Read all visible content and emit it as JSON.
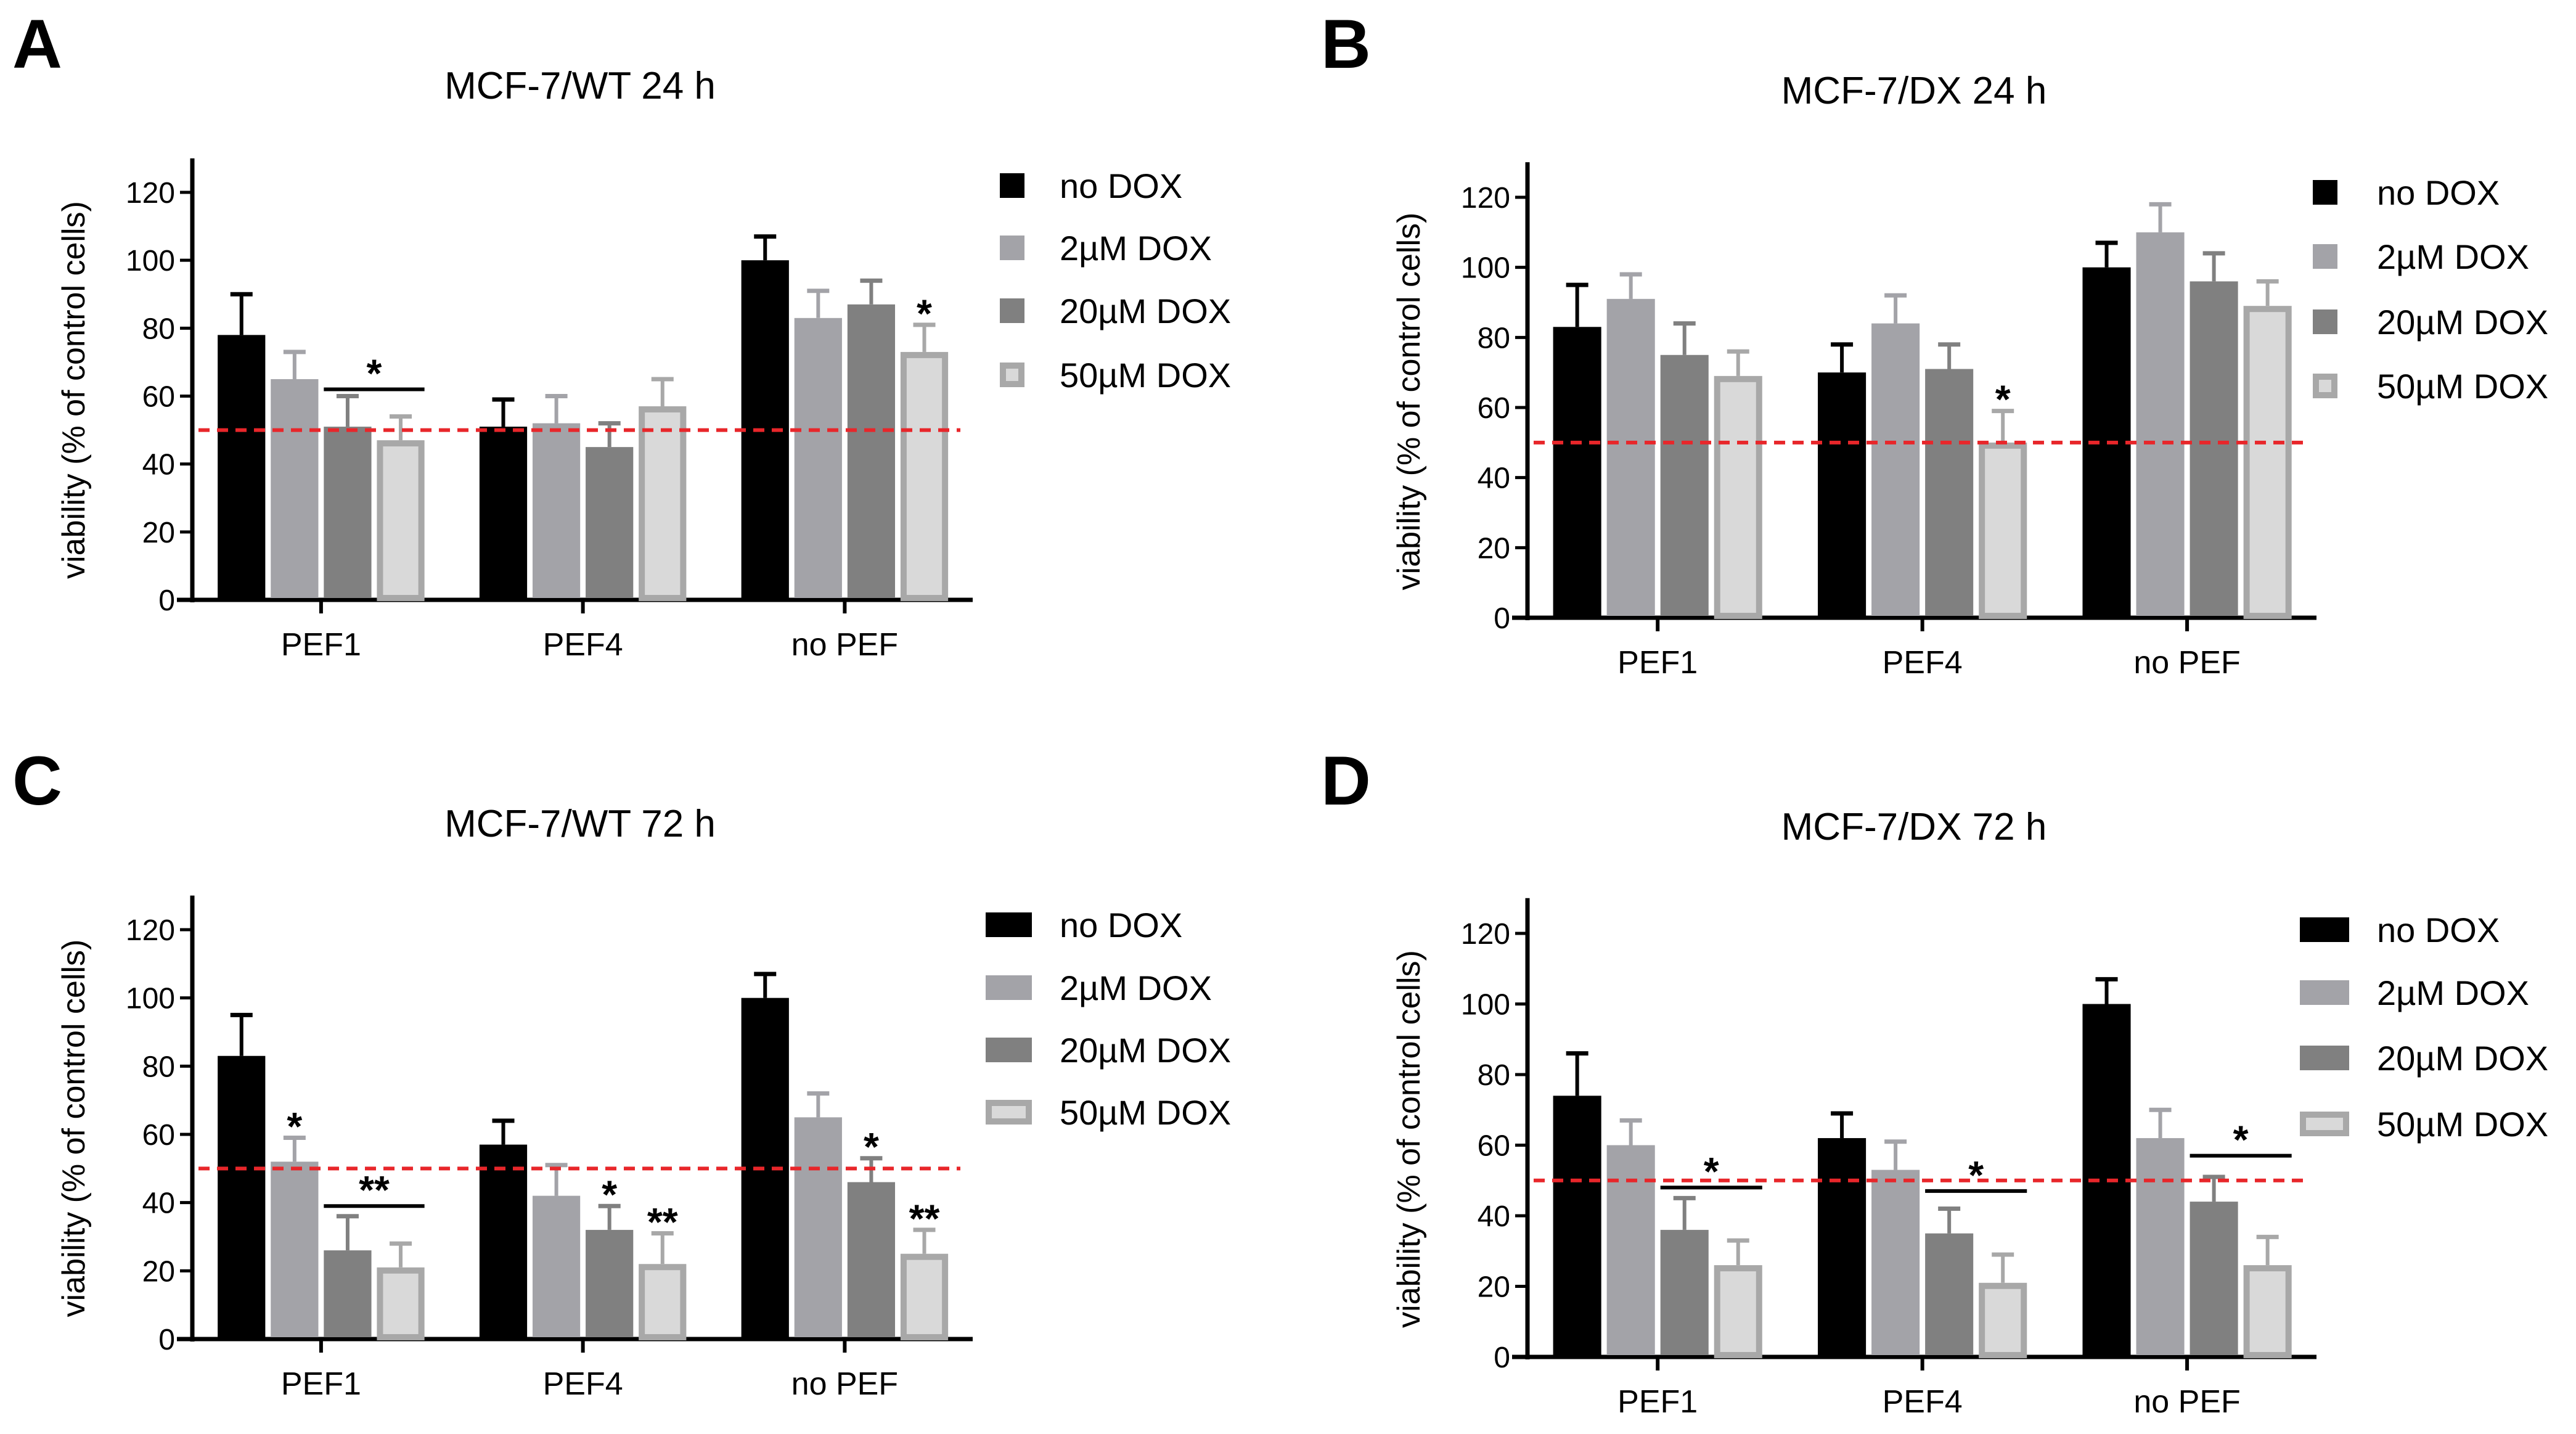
{
  "chart_data": [
    {
      "panel": "A",
      "type": "bar",
      "title": "MCF-7/WT 24 h",
      "ylabel": "viability (% of control cells)",
      "xlabel": "",
      "ylim": [
        0,
        130
      ],
      "yticks": [
        0,
        20,
        40,
        60,
        80,
        100,
        120
      ],
      "categories": [
        "PEF1",
        "PEF4",
        "no PEF"
      ],
      "series": [
        {
          "name": "no DOX",
          "values": [
            78,
            51,
            100
          ],
          "errors": [
            12,
            8,
            7
          ]
        },
        {
          "name": "2µM DOX",
          "values": [
            65,
            52,
            83
          ],
          "errors": [
            8,
            8,
            8
          ]
        },
        {
          "name": "20µM DOX",
          "values": [
            51,
            45,
            87
          ],
          "errors": [
            9,
            7,
            7
          ]
        },
        {
          "name": "50µM DOX",
          "values": [
            47,
            57,
            73
          ],
          "errors": [
            7,
            8,
            8
          ]
        }
      ],
      "reference_line": 50,
      "annotations": [
        {
          "group": 0,
          "bars": [
            2,
            3
          ],
          "y": 62,
          "text": "*",
          "bracket": true
        },
        {
          "group": 2,
          "bars": [
            3,
            3
          ],
          "y": 84,
          "text": "*",
          "bracket": false
        }
      ]
    },
    {
      "panel": "B",
      "type": "bar",
      "title": "MCF-7/DX 24 h",
      "ylabel": "viability (% of control cells)",
      "xlabel": "",
      "ylim": [
        0,
        130
      ],
      "yticks": [
        0,
        20,
        40,
        60,
        80,
        100,
        120
      ],
      "categories": [
        "PEF1",
        "PEF4",
        "no PEF"
      ],
      "series": [
        {
          "name": "no DOX",
          "values": [
            83,
            70,
            100
          ],
          "errors": [
            12,
            8,
            7
          ]
        },
        {
          "name": "2µM DOX",
          "values": [
            91,
            84,
            110
          ],
          "errors": [
            7,
            8,
            8
          ]
        },
        {
          "name": "20µM DOX",
          "values": [
            75,
            71,
            96
          ],
          "errors": [
            9,
            7,
            8
          ]
        },
        {
          "name": "50µM DOX",
          "values": [
            69,
            50,
            89
          ],
          "errors": [
            7,
            9,
            7
          ]
        }
      ],
      "reference_line": 50,
      "annotations": [
        {
          "group": 1,
          "bars": [
            3,
            3
          ],
          "y": 62,
          "text": "*",
          "bracket": false
        }
      ]
    },
    {
      "panel": "C",
      "type": "bar",
      "title": "MCF-7/WT 72 h",
      "ylabel": "viability (% of control cells)",
      "xlabel": "",
      "ylim": [
        0,
        130
      ],
      "yticks": [
        0,
        20,
        40,
        60,
        80,
        100,
        120
      ],
      "categories": [
        "PEF1",
        "PEF4",
        "no PEF"
      ],
      "series": [
        {
          "name": "no DOX",
          "values": [
            83,
            57,
            100
          ],
          "errors": [
            12,
            7,
            7
          ]
        },
        {
          "name": "2µM DOX",
          "values": [
            52,
            42,
            65
          ],
          "errors": [
            7,
            9,
            7
          ]
        },
        {
          "name": "20µM DOX",
          "values": [
            26,
            32,
            46
          ],
          "errors": [
            10,
            7,
            7
          ]
        },
        {
          "name": "50µM DOX",
          "values": [
            21,
            22,
            25
          ],
          "errors": [
            7,
            9,
            7
          ]
        }
      ],
      "reference_line": 50,
      "annotations": [
        {
          "group": 0,
          "bars": [
            1,
            1
          ],
          "y": 62,
          "text": "*",
          "bracket": false
        },
        {
          "group": 0,
          "bars": [
            2,
            3
          ],
          "y": 39,
          "text": "**",
          "bracket": true
        },
        {
          "group": 1,
          "bars": [
            2,
            2
          ],
          "y": 42,
          "text": "*",
          "bracket": false
        },
        {
          "group": 1,
          "bars": [
            3,
            3
          ],
          "y": 34,
          "text": "**",
          "bracket": false
        },
        {
          "group": 2,
          "bars": [
            2,
            2
          ],
          "y": 56,
          "text": "*",
          "bracket": false
        },
        {
          "group": 2,
          "bars": [
            3,
            3
          ],
          "y": 35,
          "text": "**",
          "bracket": false
        }
      ]
    },
    {
      "panel": "D",
      "type": "bar",
      "title": "MCF-7/DX 72 h",
      "ylabel": "viability (% of control cells)",
      "xlabel": "",
      "ylim": [
        0,
        130
      ],
      "yticks": [
        0,
        20,
        40,
        60,
        80,
        100,
        120
      ],
      "categories": [
        "PEF1",
        "PEF4",
        "no PEF"
      ],
      "series": [
        {
          "name": "no DOX",
          "values": [
            74,
            62,
            100
          ],
          "errors": [
            12,
            7,
            7
          ]
        },
        {
          "name": "2µM DOX",
          "values": [
            60,
            53,
            62
          ],
          "errors": [
            7,
            8,
            8
          ]
        },
        {
          "name": "20µM DOX",
          "values": [
            36,
            35,
            44
          ],
          "errors": [
            9,
            7,
            7
          ]
        },
        {
          "name": "50µM DOX",
          "values": [
            26,
            21,
            26
          ],
          "errors": [
            7,
            8,
            8
          ]
        }
      ],
      "reference_line": 50,
      "annotations": [
        {
          "group": 0,
          "bars": [
            2,
            3
          ],
          "y": 48,
          "text": "*",
          "bracket": true
        },
        {
          "group": 1,
          "bars": [
            2,
            3
          ],
          "y": 47,
          "text": "*",
          "bracket": true
        },
        {
          "group": 2,
          "bars": [
            2,
            3
          ],
          "y": 57,
          "text": "*",
          "bracket": true
        }
      ]
    }
  ],
  "colors": {
    "series_fill": [
      "#000000",
      "#a3a3a8",
      "#808080",
      "#d9d9d9"
    ],
    "series_edge": [
      "#000000",
      "#a3a3a8",
      "#808080",
      "#a8a8a8"
    ],
    "error_color": [
      "#000000",
      "#a3a3a8",
      "#808080",
      "#a8a8a8"
    ],
    "reference": "#e8262a"
  }
}
